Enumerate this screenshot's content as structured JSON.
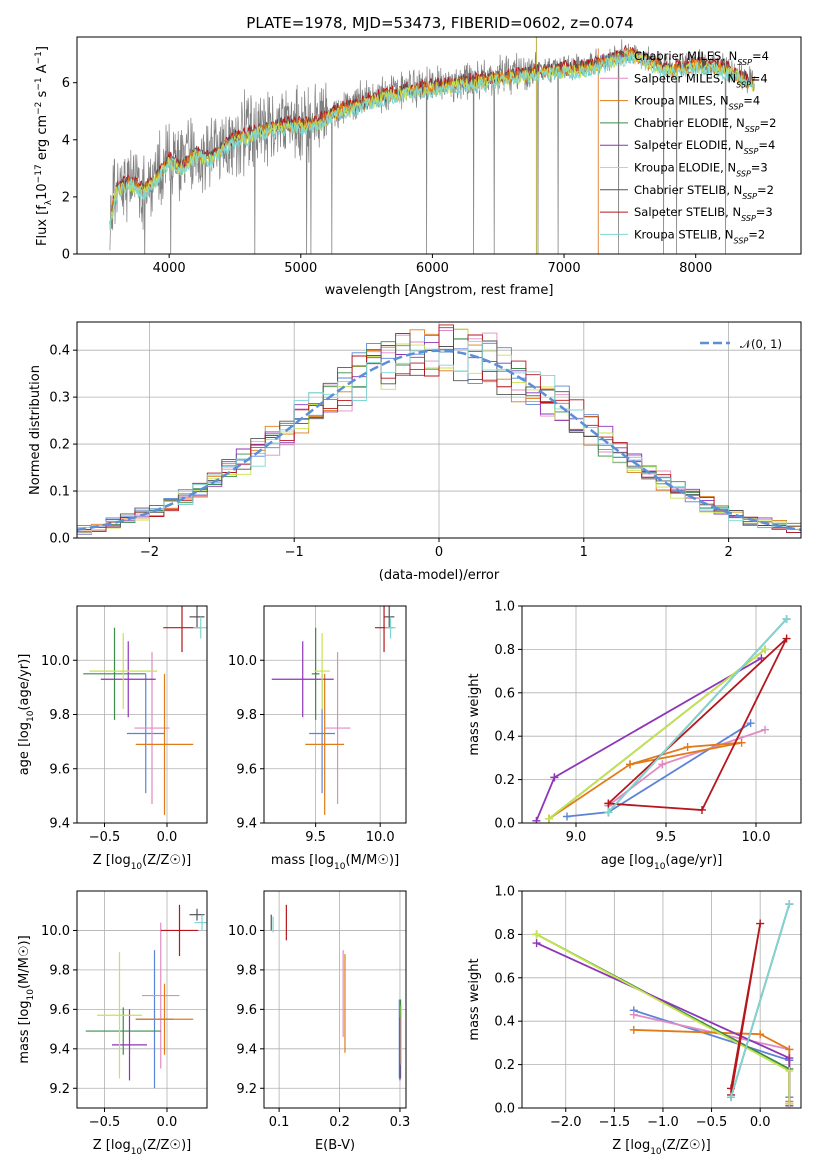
{
  "figure_title": "PLATE=1978, MJD=53473, FIBERID=0602, z=0.074",
  "colors": {
    "Chabrier MILES": "#5b84d6",
    "Salpeter MILES": "#e08cc4",
    "Kroupa MILES": "#e07b1a",
    "Chabrier ELODIE": "#3a8c4a",
    "Salpeter ELODIE": "#8e35b8",
    "Kroupa ELODIE": "#c7e34f",
    "Chabrier STELIB": "#555555",
    "Salpeter STELIB": "#b5171d",
    "Kroupa STELIB": "#7fd6d2",
    "data": "#808080",
    "normal": "#5b8fd9"
  },
  "legend_spectrum": [
    {
      "model": "Chabrier MILES",
      "n": "4"
    },
    {
      "model": "Salpeter MILES",
      "n": "4"
    },
    {
      "model": "Kroupa MILES",
      "n": "4"
    },
    {
      "model": "Chabrier ELODIE",
      "n": "2"
    },
    {
      "model": "Salpeter ELODIE",
      "n": "4"
    },
    {
      "model": "Kroupa ELODIE",
      "n": "3"
    },
    {
      "model": "Chabrier STELIB",
      "n": "2"
    },
    {
      "model": "Salpeter STELIB",
      "n": "3"
    },
    {
      "model": "Kroupa STELIB",
      "n": "2"
    }
  ],
  "legend_hist": "𝒩(0, 1)",
  "chart_data": [
    {
      "id": "spectrum",
      "type": "line",
      "xlabel": "wavelength [Angstrom, rest frame]",
      "ylabel_main": "Flux [f",
      "ylabel_sub": "λ",
      "ylabel_rest": "10",
      "ylabel_exp1": "−17",
      "ylabel_mid": " erg cm",
      "ylabel_exp2": "−2",
      "ylabel_mid2": " s",
      "ylabel_exp3": "−1",
      "ylabel_mid3": " A",
      "ylabel_exp4": "−1",
      "ylabel_end": "]",
      "xlim": [
        3300,
        8800
      ],
      "ylim": [
        0,
        7.6
      ],
      "xticks": [
        4000,
        5000,
        6000,
        7000,
        8000
      ],
      "yticks": [
        0,
        2,
        4,
        6
      ],
      "data_range": [
        3550,
        8450
      ],
      "model_range": [
        3550,
        8450
      ],
      "continuum": [
        [
          3550,
          1.3
        ],
        [
          3600,
          2.3
        ],
        [
          3700,
          2.6
        ],
        [
          3800,
          2.3
        ],
        [
          3900,
          2.7
        ],
        [
          4000,
          3.4
        ],
        [
          4100,
          3.1
        ],
        [
          4200,
          3.6
        ],
        [
          4300,
          3.4
        ],
        [
          4500,
          4.1
        ],
        [
          4700,
          4.4
        ],
        [
          4900,
          4.6
        ],
        [
          5100,
          4.6
        ],
        [
          5300,
          5.1
        ],
        [
          5500,
          5.4
        ],
        [
          5700,
          5.7
        ],
        [
          6000,
          5.9
        ],
        [
          6300,
          6.1
        ],
        [
          6600,
          6.3
        ],
        [
          6900,
          6.5
        ],
        [
          7200,
          6.6
        ],
        [
          7500,
          7.1
        ],
        [
          7800,
          6.5
        ],
        [
          8000,
          6.7
        ],
        [
          8200,
          6.6
        ],
        [
          8450,
          6.0
        ]
      ]
    },
    {
      "id": "hist",
      "type": "histogram",
      "xlabel": "(data-model)/error",
      "ylabel": "Normed distribution",
      "xlim": [
        -2.5,
        2.5
      ],
      "ylim": [
        0,
        0.46
      ],
      "xticks": [
        -2,
        -1,
        0,
        1,
        2
      ],
      "yticks": [
        0.0,
        0.1,
        0.2,
        0.3,
        0.4
      ],
      "bin_width": 0.1
    },
    {
      "id": "age_Z",
      "type": "errorbar",
      "xlabel_main": "Z [log",
      "xlabel_sub": "10",
      "xlabel_end": "(Z/Z☉)]",
      "ylabel_main": "age  [log",
      "ylabel_sub": "10",
      "ylabel_end": "(age/yr)]",
      "xlim": [
        -0.72,
        0.32
      ],
      "ylim": [
        9.4,
        10.2
      ],
      "xticks": [
        -0.5,
        0.0
      ],
      "xticklabels": [
        "−0.5",
        "0.0"
      ],
      "yticks": [
        9.4,
        9.6,
        9.8,
        10.0
      ],
      "yticklabels": [
        "9.4",
        "9.6",
        "9.8",
        "10.0"
      ],
      "points": [
        {
          "model": "Chabrier MILES",
          "x": -0.17,
          "xerr": 0.15,
          "y": 9.73,
          "yerr": 0.22
        },
        {
          "model": "Salpeter MILES",
          "x": -0.12,
          "xerr": 0.14,
          "y": 9.75,
          "yerr": 0.28
        },
        {
          "model": "Kroupa MILES",
          "x": -0.02,
          "xerr": 0.23,
          "y": 9.69,
          "yerr": 0.26
        },
        {
          "model": "Chabrier ELODIE",
          "x": -0.42,
          "xerr": 0.25,
          "y": 9.95,
          "yerr": 0.17
        },
        {
          "model": "Salpeter ELODIE",
          "x": -0.31,
          "xerr": 0.22,
          "y": 9.93,
          "yerr": 0.14
        },
        {
          "model": "Kroupa ELODIE",
          "x": -0.35,
          "xerr": 0.27,
          "y": 9.96,
          "yerr": 0.14
        },
        {
          "model": "Chabrier STELIB",
          "x": 0.24,
          "xerr": 0.06,
          "y": 10.16,
          "yerr": 0.04
        },
        {
          "model": "Salpeter STELIB",
          "x": 0.12,
          "xerr": 0.15,
          "y": 10.12,
          "yerr": 0.09
        },
        {
          "model": "Kroupa STELIB",
          "x": 0.27,
          "xerr": 0.06,
          "y": 10.12,
          "yerr": 0.04
        }
      ]
    },
    {
      "id": "age_mass",
      "type": "errorbar",
      "xlabel_main": "mass [log",
      "xlabel_sub": "10",
      "xlabel_end": "(M/M☉)]",
      "ylabel_main": "",
      "ylabel_sub": "",
      "ylabel_end": "",
      "xlim": [
        9.1,
        10.2
      ],
      "ylim": [
        9.4,
        10.2
      ],
      "xticks": [
        9.5,
        10.0
      ],
      "xticklabels": [
        "9.5",
        "10.0"
      ],
      "yticks": [
        9.4,
        9.6,
        9.8,
        10.0
      ],
      "yticklabels": [
        "9.4",
        "9.6",
        "9.8",
        "10.0"
      ],
      "points": [
        {
          "model": "Chabrier MILES",
          "x": 9.55,
          "xerr": 0.1,
          "y": 9.73,
          "yerr": 0.22
        },
        {
          "model": "Salpeter MILES",
          "x": 9.67,
          "xerr": 0.1,
          "y": 9.75,
          "yerr": 0.28
        },
        {
          "model": "Kroupa MILES",
          "x": 9.57,
          "xerr": 0.15,
          "y": 9.69,
          "yerr": 0.26
        },
        {
          "model": "Chabrier ELODIE",
          "x": 9.5,
          "xerr": 0.03,
          "y": 9.95,
          "yerr": 0.17
        },
        {
          "model": "Salpeter ELODIE",
          "x": 9.4,
          "xerr": 0.24,
          "y": 9.93,
          "yerr": 0.14
        },
        {
          "model": "Kroupa ELODIE",
          "x": 9.55,
          "xerr": 0.06,
          "y": 9.96,
          "yerr": 0.14
        },
        {
          "model": "Chabrier STELIB",
          "x": 10.07,
          "xerr": 0.04,
          "y": 10.16,
          "yerr": 0.04
        },
        {
          "model": "Salpeter STELIB",
          "x": 10.03,
          "xerr": 0.07,
          "y": 10.12,
          "yerr": 0.09
        },
        {
          "model": "Kroupa STELIB",
          "x": 10.08,
          "xerr": 0.04,
          "y": 10.12,
          "yerr": 0.04
        }
      ]
    },
    {
      "id": "weight_age",
      "type": "line",
      "xlabel_main": "age  [log",
      "xlabel_sub": "10",
      "xlabel_end": "(age/yr)]",
      "ylabel": "mass weight",
      "xlim": [
        8.7,
        10.25
      ],
      "ylim": [
        0,
        1.0
      ],
      "xticks": [
        9.0,
        9.5,
        10.0
      ],
      "xticklabels": [
        "9.0",
        "9.5",
        "10.0"
      ],
      "yticks": [
        0.0,
        0.2,
        0.4,
        0.6,
        0.8,
        1.0
      ],
      "yticklabels": [
        "0.0",
        "0.2",
        "0.4",
        "0.6",
        "0.8",
        "1.0"
      ],
      "series": [
        {
          "model": "Chabrier MILES",
          "x": [
            8.95,
            9.18,
            9.97,
            9.18
          ],
          "y": [
            0.03,
            0.05,
            0.46,
            0.05
          ]
        },
        {
          "model": "Salpeter MILES",
          "x": [
            9.18,
            9.48,
            10.05,
            9.48
          ],
          "y": [
            0.08,
            0.27,
            0.43,
            0.27
          ]
        },
        {
          "model": "Kroupa MILES",
          "x": [
            8.85,
            9.3,
            9.62,
            9.92,
            9.3
          ],
          "y": [
            0.02,
            0.27,
            0.35,
            0.37,
            0.27
          ]
        },
        {
          "model": "Chabrier ELODIE",
          "x": [
            8.85,
            10.05,
            8.85
          ],
          "y": [
            0.02,
            0.8,
            0.02
          ]
        },
        {
          "model": "Salpeter ELODIE",
          "x": [
            8.78,
            8.88,
            10.03,
            8.88
          ],
          "y": [
            0.01,
            0.21,
            0.76,
            0.21
          ]
        },
        {
          "model": "Kroupa ELODIE",
          "x": [
            8.85,
            10.05,
            8.85
          ],
          "y": [
            0.02,
            0.8,
            0.02
          ]
        },
        {
          "model": "Chabrier STELIB",
          "x": [
            9.18,
            10.17,
            9.18
          ],
          "y": [
            0.05,
            0.94,
            0.05
          ]
        },
        {
          "model": "Salpeter STELIB",
          "x": [
            9.18,
            9.7,
            10.17,
            9.18
          ],
          "y": [
            0.09,
            0.06,
            0.85,
            0.09
          ]
        },
        {
          "model": "Kroupa STELIB",
          "x": [
            9.18,
            10.17,
            9.18
          ],
          "y": [
            0.05,
            0.94,
            0.05
          ]
        }
      ]
    },
    {
      "id": "mass_Z",
      "type": "errorbar",
      "xlabel_main": "Z [log",
      "xlabel_sub": "10",
      "xlabel_end": "(Z/Z☉)]",
      "ylabel_main": "mass [log",
      "ylabel_sub": "10",
      "ylabel_end": "(M/M☉)]",
      "xlim": [
        -0.72,
        0.32
      ],
      "ylim": [
        9.1,
        10.2
      ],
      "xticks": [
        -0.5,
        0.0
      ],
      "xticklabels": [
        "−0.5",
        "0.0"
      ],
      "yticks": [
        9.2,
        9.4,
        9.6,
        9.8,
        10.0
      ],
      "yticklabels": [
        "9.2",
        "9.4",
        "9.6",
        "9.8",
        "10.0"
      ],
      "points": [
        {
          "model": "Chabrier MILES",
          "x": -0.1,
          "xerr": 0.15,
          "y": 9.55,
          "yerr": 0.35
        },
        {
          "model": "Salpeter MILES",
          "x": -0.05,
          "xerr": 0.15,
          "y": 9.67,
          "yerr": 0.37
        },
        {
          "model": "Kroupa MILES",
          "x": -0.02,
          "xerr": 0.23,
          "y": 9.55,
          "yerr": 0.18
        },
        {
          "model": "Chabrier ELODIE",
          "x": -0.35,
          "xerr": 0.3,
          "y": 9.49,
          "yerr": 0.12
        },
        {
          "model": "Salpeter ELODIE",
          "x": -0.3,
          "xerr": 0.14,
          "y": 9.42,
          "yerr": 0.18
        },
        {
          "model": "Kroupa ELODIE",
          "x": -0.38,
          "xerr": 0.18,
          "y": 9.57,
          "yerr": 0.32
        },
        {
          "model": "Chabrier STELIB",
          "x": 0.24,
          "xerr": 0.06,
          "y": 10.08,
          "yerr": 0.03
        },
        {
          "model": "Salpeter STELIB",
          "x": 0.1,
          "xerr": 0.15,
          "y": 10.0,
          "yerr": 0.13
        },
        {
          "model": "Kroupa STELIB",
          "x": 0.28,
          "xerr": 0.06,
          "y": 10.04,
          "yerr": 0.04
        }
      ]
    },
    {
      "id": "mass_ebv",
      "type": "errorbar",
      "xlabel_main": "E(B-V)",
      "xlabel_sub": "",
      "xlabel_end": "",
      "ylabel_main": "",
      "ylabel_sub": "",
      "ylabel_end": "",
      "xlim": [
        0.075,
        0.31
      ],
      "ylim": [
        9.1,
        10.2
      ],
      "xticks": [
        0.1,
        0.2,
        0.3
      ],
      "xticklabels": [
        "0.1",
        "0.2",
        "0.3"
      ],
      "yticks": [
        9.2,
        9.4,
        9.6,
        9.8,
        10.0
      ],
      "yticklabels": [
        "9.2",
        "9.4",
        "9.6",
        "9.8",
        "10.0"
      ],
      "points": [
        {
          "model": "Chabrier MILES",
          "x": 0.299,
          "xerr": 0,
          "y": 9.45,
          "yerr": 0.2
        },
        {
          "model": "Salpeter MILES",
          "x": 0.206,
          "xerr": 0,
          "y": 9.68,
          "yerr": 0.22
        },
        {
          "model": "Kroupa MILES",
          "x": 0.209,
          "xerr": 0,
          "y": 9.63,
          "yerr": 0.25
        },
        {
          "model": "Chabrier ELODIE",
          "x": 0.301,
          "xerr": 0,
          "y": 9.45,
          "yerr": 0.2
        },
        {
          "model": "Salpeter ELODIE",
          "x": 0.3,
          "xerr": 0,
          "y": 9.4,
          "yerr": 0.16
        },
        {
          "model": "Kroupa ELODIE",
          "x": 0.302,
          "xerr": 0,
          "y": 9.47,
          "yerr": 0.15
        },
        {
          "model": "Chabrier STELIB",
          "x": 0.087,
          "xerr": 0,
          "y": 10.04,
          "yerr": 0.04
        },
        {
          "model": "Salpeter STELIB",
          "x": 0.112,
          "xerr": 0,
          "y": 10.04,
          "yerr": 0.09
        },
        {
          "model": "Kroupa STELIB",
          "x": 0.09,
          "xerr": 0,
          "y": 10.03,
          "yerr": 0.04
        }
      ]
    },
    {
      "id": "weight_Z",
      "type": "line",
      "xlabel_main": "Z [log",
      "xlabel_sub": "10",
      "xlabel_end": "(Z/Z☉)]",
      "ylabel": "mass weight",
      "xlim": [
        -2.45,
        0.42
      ],
      "ylim": [
        0,
        1.0
      ],
      "xticks": [
        -2.0,
        -1.5,
        -1.0,
        -0.5,
        0.0
      ],
      "xticklabels": [
        "−2.0",
        "−1.5",
        "−1.0",
        "−0.5",
        "0.0"
      ],
      "yticks": [
        0.0,
        0.2,
        0.4,
        0.6,
        0.8,
        1.0
      ],
      "yticklabels": [
        "0.0",
        "0.2",
        "0.4",
        "0.6",
        "0.8",
        "1.0"
      ],
      "series": [
        {
          "model": "Chabrier MILES",
          "x": [
            -1.3,
            0.3,
            0.3
          ],
          "y": [
            0.45,
            0.22,
            0.05
          ]
        },
        {
          "model": "Salpeter MILES",
          "x": [
            -1.3,
            0.3,
            0.3
          ],
          "y": [
            0.43,
            0.27,
            0.02
          ]
        },
        {
          "model": "Kroupa MILES",
          "x": [
            -1.3,
            0.0,
            0.3,
            0.3
          ],
          "y": [
            0.36,
            0.34,
            0.27,
            0.03
          ]
        },
        {
          "model": "Chabrier ELODIE",
          "x": [
            -2.3,
            0.3,
            0.3
          ],
          "y": [
            0.8,
            0.18,
            0.02
          ]
        },
        {
          "model": "Salpeter ELODIE",
          "x": [
            -2.3,
            0.3,
            0.3
          ],
          "y": [
            0.76,
            0.23,
            0.01
          ]
        },
        {
          "model": "Kroupa ELODIE",
          "x": [
            -2.3,
            0.3,
            0.3
          ],
          "y": [
            0.8,
            0.17,
            0.02
          ]
        },
        {
          "model": "Chabrier STELIB",
          "x": [
            -0.3,
            0.3
          ],
          "y": [
            0.05,
            0.94
          ]
        },
        {
          "model": "Salpeter STELIB",
          "x": [
            -0.3,
            0.0,
            -0.3
          ],
          "y": [
            0.09,
            0.85,
            0.06
          ]
        },
        {
          "model": "Kroupa STELIB",
          "x": [
            -0.3,
            0.3
          ],
          "y": [
            0.05,
            0.94
          ]
        }
      ]
    }
  ]
}
